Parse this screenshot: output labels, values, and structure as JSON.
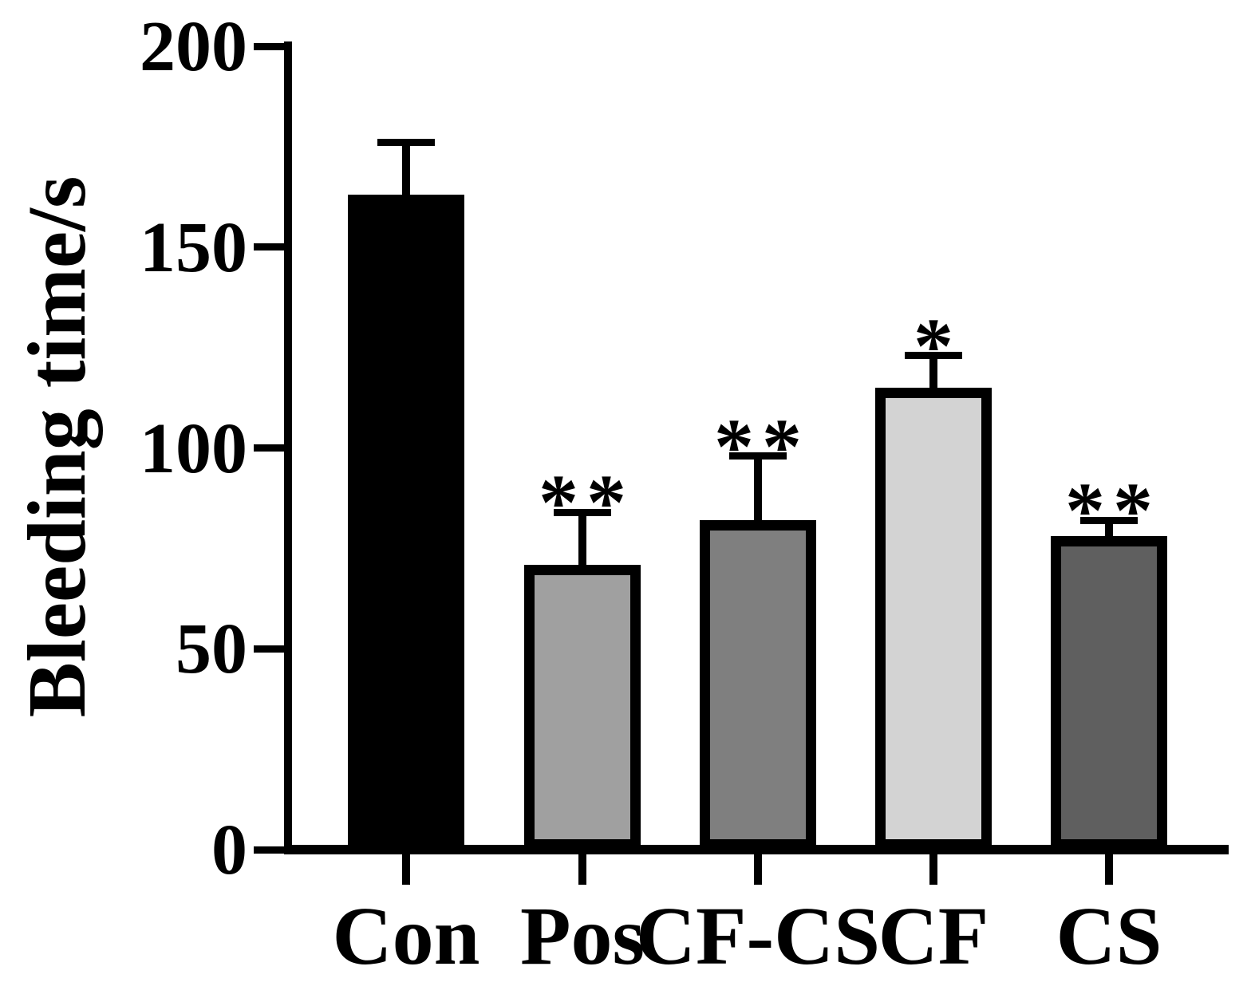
{
  "figure": {
    "background": "#ffffff",
    "axis_color": "#000000"
  },
  "chart_data": {
    "type": "bar",
    "title": "",
    "xlabel": "",
    "ylabel": "Bleeding time/s",
    "ylim": [
      0,
      200
    ],
    "yticks": [
      0,
      50,
      100,
      150,
      200
    ],
    "categories": [
      "Con",
      "Pos",
      "CF-CS",
      "CF",
      "CS"
    ],
    "values": [
      163,
      71,
      82,
      115,
      78
    ],
    "errors_plus": [
      13,
      13,
      16,
      8,
      4
    ],
    "significance": [
      "",
      "**",
      "**",
      "*",
      "**"
    ],
    "bar_colors": [
      "#000000",
      "#a0a0a0",
      "#7f7f7f",
      "#d3d3d3",
      "#5f5f5f"
    ],
    "grid": false,
    "legend_position": "none"
  }
}
